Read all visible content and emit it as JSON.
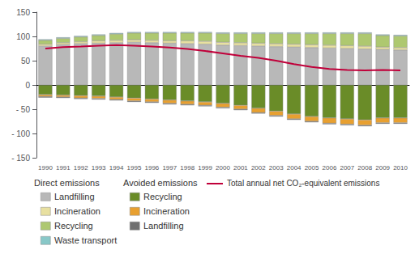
{
  "chart_data": {
    "type": "bar",
    "stacked": true,
    "grid": false,
    "legend": "bottom",
    "categories": [
      "1990",
      "1991",
      "1992",
      "1993",
      "1994",
      "1995",
      "1996",
      "1997",
      "1998",
      "1999",
      "2000",
      "2001",
      "2002",
      "2003",
      "2004",
      "2005",
      "2006",
      "2007",
      "2008",
      "2009",
      "2010"
    ],
    "series": [
      {
        "name": "Landfilling",
        "group": "Direct emissions",
        "type": "bar",
        "color": "#b8b8b8",
        "values": [
          80,
          83,
          85,
          86,
          87,
          88,
          87,
          86,
          85,
          84,
          82,
          81,
          80,
          79,
          78,
          77,
          76,
          75,
          74,
          73,
          72
        ]
      },
      {
        "name": "Incineration",
        "group": "Direct emissions",
        "type": "bar",
        "color": "#e8e0a0",
        "values": [
          4,
          4,
          4,
          5,
          5,
          5,
          5,
          5,
          6,
          6,
          6,
          6,
          6,
          6,
          6,
          6,
          6,
          6,
          6,
          5,
          5
        ]
      },
      {
        "name": "Recycling",
        "group": "Direct emissions",
        "type": "bar",
        "color": "#aec870",
        "values": [
          8,
          9,
          10,
          11,
          13,
          14,
          15,
          16,
          16,
          17,
          18,
          19,
          20,
          21,
          22,
          23,
          24,
          25,
          26,
          24,
          24
        ]
      },
      {
        "name": "Waste transport",
        "group": "Direct emissions",
        "type": "bar",
        "color": "#88c8c8",
        "values": [
          2,
          2,
          2,
          2,
          2,
          2,
          2,
          2,
          2,
          2,
          2,
          2,
          2,
          2,
          2,
          2,
          2,
          2,
          2,
          2,
          2
        ]
      },
      {
        "name": "Recycling",
        "group": "Avoided emissions",
        "type": "bar",
        "color": "#6a8c28",
        "values": [
          -20,
          -21,
          -22,
          -23,
          -25,
          -27,
          -29,
          -31,
          -33,
          -35,
          -38,
          -42,
          -48,
          -54,
          -60,
          -65,
          -68,
          -70,
          -72,
          -68,
          -68
        ]
      },
      {
        "name": "Incineration",
        "group": "Avoided emissions",
        "type": "bar",
        "color": "#e8a030",
        "values": [
          -4,
          -4,
          -5,
          -5,
          -5,
          -6,
          -6,
          -7,
          -7,
          -7,
          -8,
          -8,
          -9,
          -9,
          -10,
          -10,
          -11,
          -11,
          -11,
          -10,
          -10
        ]
      },
      {
        "name": "Landfilling",
        "group": "Avoided emissions",
        "type": "bar",
        "color": "#707070",
        "values": [
          -2,
          -2,
          -2,
          -2,
          -2,
          -2,
          -2,
          -2,
          -2,
          -2,
          -2,
          -2,
          -2,
          -2,
          -2,
          -2,
          -2,
          -2,
          -2,
          -2,
          -2
        ]
      },
      {
        "name": "Total annual net CO₂-equivalent emissions",
        "type": "line",
        "color": "#c0003a",
        "values": [
          75,
          78,
          79,
          81,
          82,
          81,
          79,
          77,
          74,
          70,
          65,
          60,
          56,
          50,
          43,
          37,
          33,
          31,
          30,
          31,
          30
        ]
      }
    ],
    "ylim": [
      -150,
      150
    ],
    "yticks": [
      {
        "value": -150,
        "label": "- 150"
      },
      {
        "value": -100,
        "label": "- 100"
      },
      {
        "value": -50,
        "label": "- 50"
      },
      0,
      50,
      100,
      150
    ]
  }
}
